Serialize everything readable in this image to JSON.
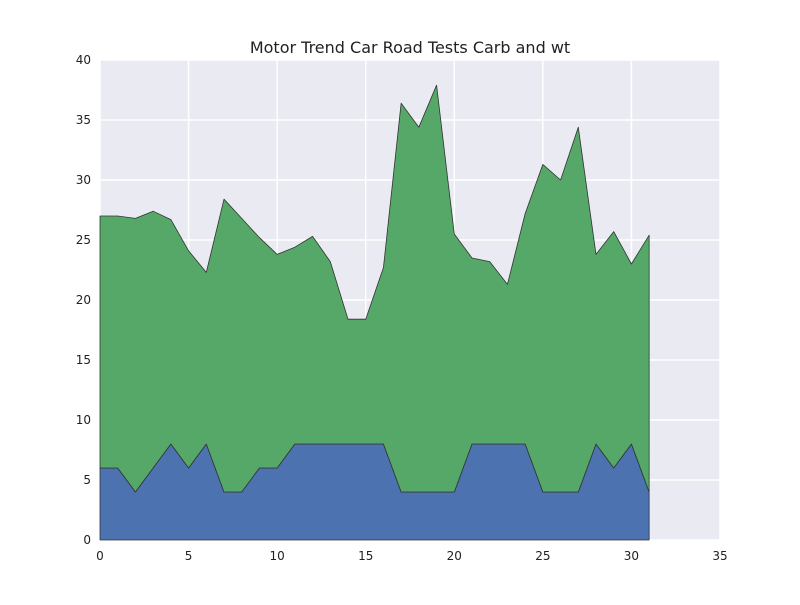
{
  "chart_data": {
    "type": "area",
    "stacked": true,
    "title": "Motor Trend Car Road Tests Carb and wt",
    "xlabel": "",
    "ylabel": "",
    "xlim": [
      0,
      35
    ],
    "ylim": [
      0,
      40
    ],
    "x_ticks": [
      0,
      5,
      10,
      15,
      20,
      25,
      30,
      35
    ],
    "y_ticks": [
      0,
      5,
      10,
      15,
      20,
      25,
      30,
      35,
      40
    ],
    "grid": true,
    "legend": "none",
    "background_color": "#EAEAF2",
    "x": [
      0,
      1,
      2,
      3,
      4,
      5,
      6,
      7,
      8,
      9,
      10,
      11,
      12,
      13,
      14,
      15,
      16,
      17,
      18,
      19,
      20,
      21,
      22,
      23,
      24,
      25,
      26,
      27,
      28,
      29,
      30,
      31
    ],
    "series": [
      {
        "color": "#4C72B0",
        "values": [
          6,
          6,
          4,
          6,
          8,
          6,
          8,
          4,
          4,
          6,
          6,
          8,
          8,
          8,
          8,
          8,
          8,
          4,
          4,
          4,
          4,
          8,
          8,
          8,
          8,
          4,
          4,
          4,
          8,
          6,
          8,
          4
        ]
      },
      {
        "color": "#55A868",
        "values": [
          21.0,
          21.0,
          22.8,
          21.4,
          18.7,
          18.1,
          14.3,
          24.4,
          22.8,
          19.2,
          17.8,
          16.4,
          17.3,
          15.2,
          10.4,
          10.4,
          14.7,
          32.4,
          30.4,
          33.9,
          21.5,
          15.5,
          15.2,
          13.3,
          19.2,
          27.3,
          26.0,
          30.4,
          15.8,
          19.7,
          15.0,
          21.4
        ]
      }
    ]
  }
}
